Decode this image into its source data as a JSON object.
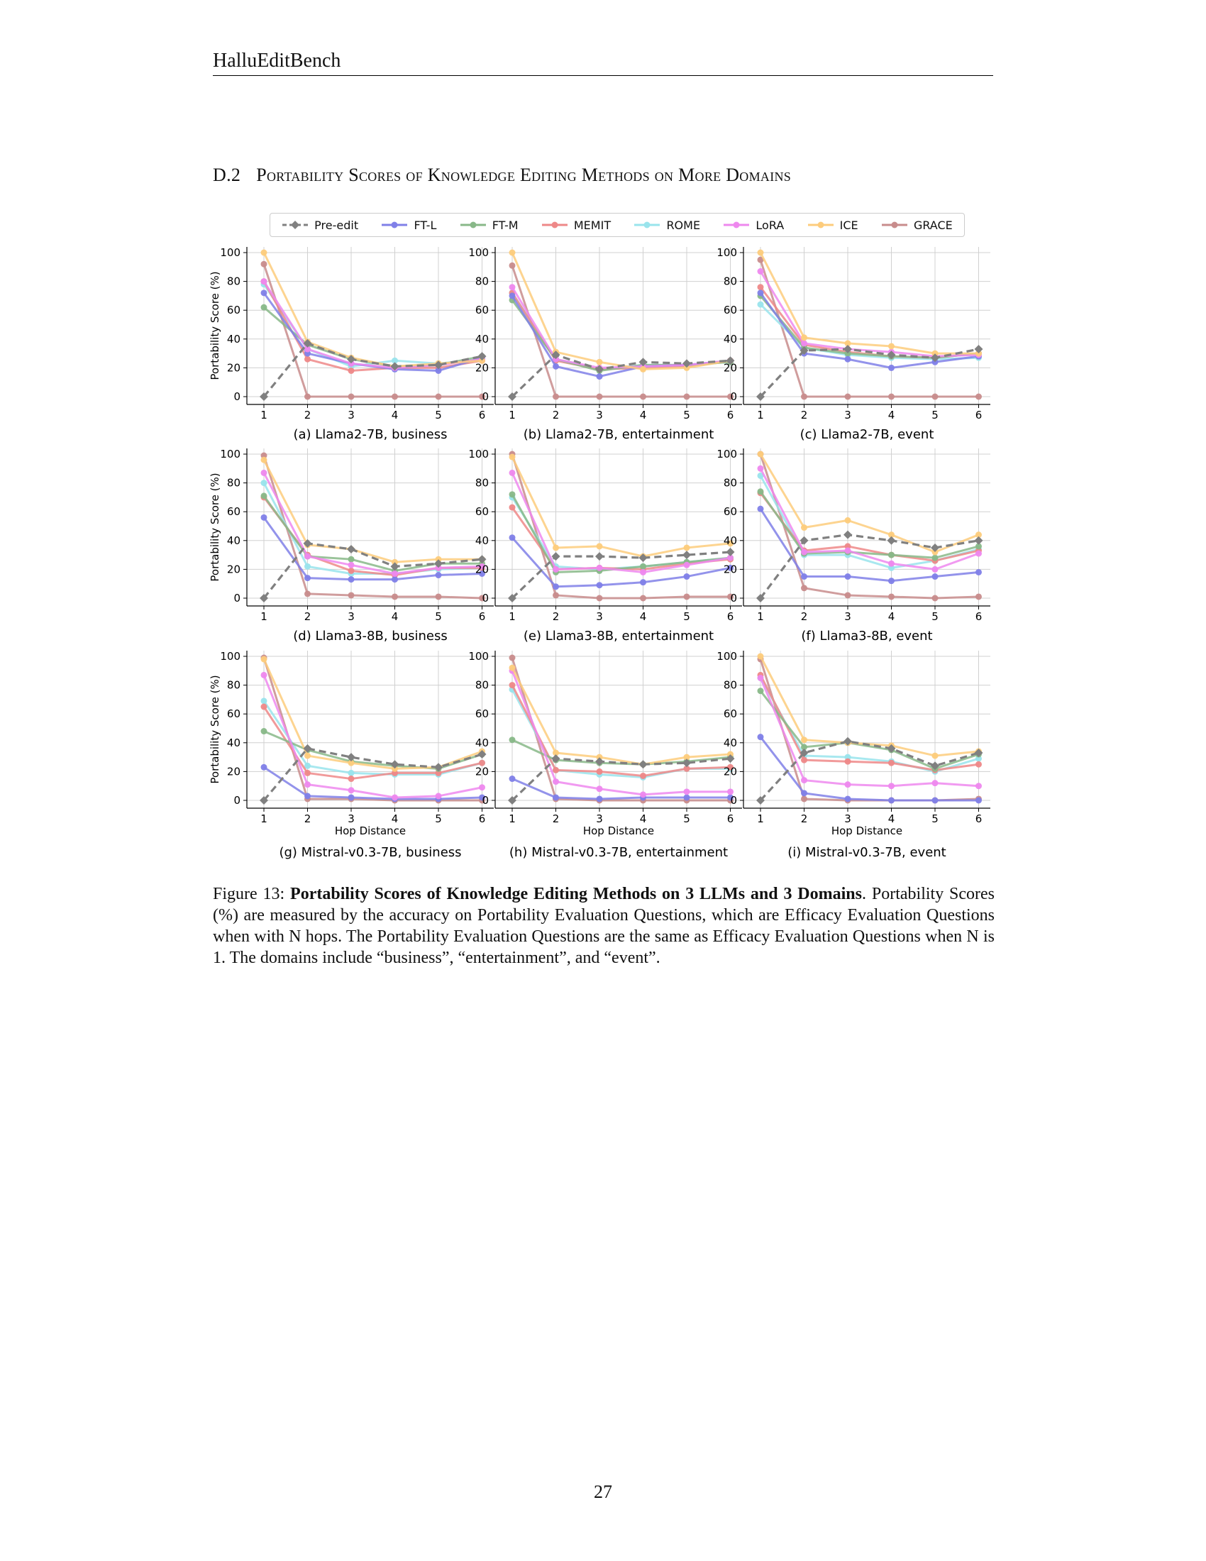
{
  "header": {
    "running_head": "HalluEditBench"
  },
  "section": {
    "number": "D.2",
    "title": "Portability Scores of Knowledge Editing Methods on More Domains"
  },
  "legend": [
    {
      "name": "Pre-edit",
      "color": "#808080",
      "marker": "diamond",
      "dashed": true
    },
    {
      "name": "FT-L",
      "color": "#8080e8",
      "marker": "circle",
      "dashed": false
    },
    {
      "name": "FT-M",
      "color": "#88b888",
      "marker": "circle",
      "dashed": false
    },
    {
      "name": "MEMIT",
      "color": "#ee8888",
      "marker": "circle",
      "dashed": false
    },
    {
      "name": "ROME",
      "color": "#99e4ec",
      "marker": "circle",
      "dashed": false
    },
    {
      "name": "LoRA",
      "color": "#ee88ee",
      "marker": "circle",
      "dashed": false
    },
    {
      "name": "ICE",
      "color": "#fdcc7c",
      "marker": "circle",
      "dashed": false
    },
    {
      "name": "GRACE",
      "color": "#c88c8c",
      "marker": "circle",
      "dashed": false
    }
  ],
  "chart_data": [
    {
      "type": "line",
      "subtitle": "(a) Llama2-7B, business",
      "ylabel": "Portability Score (%)",
      "xlabel": "",
      "x": [
        1,
        2,
        3,
        4,
        5,
        6
      ],
      "ylim": [
        0,
        100
      ],
      "grid": true,
      "series": [
        {
          "name": "Pre-edit",
          "values": [
            0,
            37,
            26,
            21,
            22,
            28
          ]
        },
        {
          "name": "FT-L",
          "values": [
            72,
            30,
            23,
            19,
            18,
            27
          ]
        },
        {
          "name": "FT-M",
          "values": [
            62,
            36,
            26,
            21,
            22,
            28
          ]
        },
        {
          "name": "MEMIT",
          "values": [
            80,
            26,
            18,
            20,
            20,
            25
          ]
        },
        {
          "name": "ROME",
          "values": [
            78,
            33,
            21,
            25,
            23,
            26
          ]
        },
        {
          "name": "LoRA",
          "values": [
            80,
            33,
            23,
            20,
            22,
            26
          ]
        },
        {
          "name": "ICE",
          "values": [
            100,
            38,
            27,
            21,
            23,
            25
          ]
        },
        {
          "name": "GRACE",
          "values": [
            92,
            0,
            0,
            0,
            0,
            0
          ]
        }
      ]
    },
    {
      "type": "line",
      "subtitle": "(b) Llama2-7B, entertainment",
      "ylabel": "",
      "xlabel": "",
      "x": [
        1,
        2,
        3,
        4,
        5,
        6
      ],
      "ylim": [
        0,
        100
      ],
      "grid": true,
      "series": [
        {
          "name": "Pre-edit",
          "values": [
            0,
            29,
            19,
            24,
            23,
            25
          ]
        },
        {
          "name": "FT-L",
          "values": [
            70,
            21,
            14,
            21,
            22,
            25
          ]
        },
        {
          "name": "FT-M",
          "values": [
            67,
            26,
            18,
            22,
            22,
            24
          ]
        },
        {
          "name": "MEMIT",
          "values": [
            72,
            25,
            19,
            20,
            21,
            25
          ]
        },
        {
          "name": "ROME",
          "values": [
            72,
            26,
            19,
            22,
            22,
            24
          ]
        },
        {
          "name": "LoRA",
          "values": [
            76,
            26,
            20,
            21,
            22,
            25
          ]
        },
        {
          "name": "ICE",
          "values": [
            100,
            31,
            24,
            19,
            20,
            25
          ]
        },
        {
          "name": "GRACE",
          "values": [
            91,
            0,
            0,
            0,
            0,
            0
          ]
        }
      ]
    },
    {
      "type": "line",
      "subtitle": "(c) Llama2-7B, event",
      "ylabel": "",
      "xlabel": "",
      "x": [
        1,
        2,
        3,
        4,
        5,
        6
      ],
      "ylim": [
        0,
        100
      ],
      "grid": true,
      "series": [
        {
          "name": "Pre-edit",
          "values": [
            0,
            32,
            33,
            29,
            27,
            33
          ]
        },
        {
          "name": "FT-L",
          "values": [
            72,
            30,
            26,
            20,
            24,
            28
          ]
        },
        {
          "name": "FT-M",
          "values": [
            70,
            34,
            30,
            28,
            27,
            30
          ]
        },
        {
          "name": "MEMIT",
          "values": [
            76,
            36,
            31,
            28,
            27,
            30
          ]
        },
        {
          "name": "ROME",
          "values": [
            64,
            34,
            29,
            27,
            26,
            27
          ]
        },
        {
          "name": "LoRA",
          "values": [
            87,
            37,
            33,
            31,
            28,
            29
          ]
        },
        {
          "name": "ICE",
          "values": [
            100,
            41,
            37,
            35,
            30,
            30
          ]
        },
        {
          "name": "GRACE",
          "values": [
            95,
            0,
            0,
            0,
            0,
            0
          ]
        }
      ]
    },
    {
      "type": "line",
      "subtitle": "(d) Llama3-8B, business",
      "ylabel": "Portability Score (%)",
      "xlabel": "",
      "x": [
        1,
        2,
        3,
        4,
        5,
        6
      ],
      "ylim": [
        0,
        100
      ],
      "grid": true,
      "series": [
        {
          "name": "Pre-edit",
          "values": [
            0,
            38,
            34,
            22,
            24,
            27
          ]
        },
        {
          "name": "FT-L",
          "values": [
            56,
            14,
            13,
            13,
            16,
            17
          ]
        },
        {
          "name": "FT-M",
          "values": [
            71,
            29,
            27,
            19,
            24,
            24
          ]
        },
        {
          "name": "MEMIT",
          "values": [
            70,
            30,
            19,
            16,
            21,
            21
          ]
        },
        {
          "name": "ROME",
          "values": [
            80,
            22,
            17,
            17,
            20,
            21
          ]
        },
        {
          "name": "LoRA",
          "values": [
            87,
            29,
            23,
            17,
            21,
            22
          ]
        },
        {
          "name": "ICE",
          "values": [
            96,
            37,
            34,
            25,
            27,
            27
          ]
        },
        {
          "name": "GRACE",
          "values": [
            99,
            3,
            2,
            1,
            1,
            0
          ]
        }
      ]
    },
    {
      "type": "line",
      "subtitle": "(e) Llama3-8B, entertainment",
      "ylabel": "",
      "xlabel": "",
      "x": [
        1,
        2,
        3,
        4,
        5,
        6
      ],
      "ylim": [
        0,
        100
      ],
      "grid": true,
      "series": [
        {
          "name": "Pre-edit",
          "values": [
            0,
            29,
            29,
            28,
            30,
            32
          ]
        },
        {
          "name": "FT-L",
          "values": [
            42,
            8,
            9,
            11,
            15,
            21
          ]
        },
        {
          "name": "FT-M",
          "values": [
            72,
            18,
            19,
            22,
            25,
            28
          ]
        },
        {
          "name": "MEMIT",
          "values": [
            63,
            20,
            21,
            20,
            24,
            27
          ]
        },
        {
          "name": "ROME",
          "values": [
            70,
            22,
            20,
            22,
            25,
            28
          ]
        },
        {
          "name": "LoRA",
          "values": [
            87,
            20,
            21,
            18,
            23,
            28
          ]
        },
        {
          "name": "ICE",
          "values": [
            98,
            35,
            36,
            29,
            35,
            38
          ]
        },
        {
          "name": "GRACE",
          "values": [
            100,
            2,
            0,
            0,
            1,
            1
          ]
        }
      ]
    },
    {
      "type": "line",
      "subtitle": "(f) Llama3-8B, event",
      "ylabel": "",
      "xlabel": "",
      "x": [
        1,
        2,
        3,
        4,
        5,
        6
      ],
      "ylim": [
        0,
        100
      ],
      "grid": true,
      "series": [
        {
          "name": "Pre-edit",
          "values": [
            0,
            40,
            44,
            40,
            35,
            40
          ]
        },
        {
          "name": "FT-L",
          "values": [
            62,
            15,
            15,
            12,
            15,
            18
          ]
        },
        {
          "name": "FT-M",
          "values": [
            74,
            31,
            32,
            30,
            28,
            36
          ]
        },
        {
          "name": "MEMIT",
          "values": [
            73,
            33,
            36,
            30,
            26,
            33
          ]
        },
        {
          "name": "ROME",
          "values": [
            85,
            30,
            30,
            21,
            26,
            34
          ]
        },
        {
          "name": "LoRA",
          "values": [
            90,
            32,
            33,
            24,
            20,
            31
          ]
        },
        {
          "name": "ICE",
          "values": [
            100,
            49,
            54,
            44,
            32,
            44
          ]
        },
        {
          "name": "GRACE",
          "values": [
            100,
            7,
            2,
            1,
            0,
            1
          ]
        }
      ]
    },
    {
      "type": "line",
      "subtitle": "(g) Mistral-v0.3-7B, business",
      "ylabel": "Portability Score (%)",
      "xlabel": "Hop Distance",
      "x": [
        1,
        2,
        3,
        4,
        5,
        6
      ],
      "ylim": [
        0,
        100
      ],
      "grid": true,
      "series": [
        {
          "name": "Pre-edit",
          "values": [
            0,
            36,
            30,
            25,
            23,
            32
          ]
        },
        {
          "name": "FT-L",
          "values": [
            23,
            3,
            2,
            1,
            1,
            2
          ]
        },
        {
          "name": "FT-M",
          "values": [
            48,
            35,
            27,
            24,
            22,
            32
          ]
        },
        {
          "name": "MEMIT",
          "values": [
            65,
            19,
            15,
            19,
            19,
            26
          ]
        },
        {
          "name": "ROME",
          "values": [
            69,
            24,
            19,
            18,
            18,
            26
          ]
        },
        {
          "name": "LoRA",
          "values": [
            87,
            11,
            7,
            2,
            3,
            9
          ]
        },
        {
          "name": "ICE",
          "values": [
            98,
            31,
            26,
            22,
            23,
            34
          ]
        },
        {
          "name": "GRACE",
          "values": [
            99,
            1,
            1,
            0,
            0,
            0
          ]
        }
      ]
    },
    {
      "type": "line",
      "subtitle": "(h) Mistral-v0.3-7B, entertainment",
      "ylabel": "",
      "xlabel": "Hop Distance",
      "x": [
        1,
        2,
        3,
        4,
        5,
        6
      ],
      "ylim": [
        0,
        100
      ],
      "grid": true,
      "series": [
        {
          "name": "Pre-edit",
          "values": [
            0,
            29,
            27,
            25,
            26,
            29
          ]
        },
        {
          "name": "FT-L",
          "values": [
            15,
            2,
            1,
            2,
            2,
            2
          ]
        },
        {
          "name": "FT-M",
          "values": [
            42,
            28,
            26,
            25,
            27,
            30
          ]
        },
        {
          "name": "MEMIT",
          "values": [
            80,
            21,
            20,
            17,
            22,
            23
          ]
        },
        {
          "name": "ROME",
          "values": [
            77,
            21,
            18,
            16,
            22,
            22
          ]
        },
        {
          "name": "LoRA",
          "values": [
            90,
            13,
            8,
            4,
            6,
            6
          ]
        },
        {
          "name": "ICE",
          "values": [
            92,
            33,
            30,
            25,
            30,
            32
          ]
        },
        {
          "name": "GRACE",
          "values": [
            99,
            1,
            0,
            0,
            0,
            0
          ]
        }
      ]
    },
    {
      "type": "line",
      "subtitle": "(i) Mistral-v0.3-7B, event",
      "ylabel": "",
      "xlabel": "Hop Distance",
      "x": [
        1,
        2,
        3,
        4,
        5,
        6
      ],
      "ylim": [
        0,
        100
      ],
      "grid": true,
      "series": [
        {
          "name": "Pre-edit",
          "values": [
            0,
            33,
            41,
            36,
            24,
            33
          ]
        },
        {
          "name": "FT-L",
          "values": [
            44,
            5,
            1,
            0,
            0,
            0
          ]
        },
        {
          "name": "FT-M",
          "values": [
            76,
            37,
            40,
            35,
            22,
            32
          ]
        },
        {
          "name": "MEMIT",
          "values": [
            87,
            28,
            27,
            26,
            21,
            25
          ]
        },
        {
          "name": "ROME",
          "values": [
            85,
            31,
            30,
            27,
            20,
            29
          ]
        },
        {
          "name": "LoRA",
          "values": [
            85,
            14,
            11,
            10,
            12,
            10
          ]
        },
        {
          "name": "ICE",
          "values": [
            100,
            42,
            40,
            38,
            31,
            34
          ]
        },
        {
          "name": "GRACE",
          "values": [
            98,
            1,
            0,
            0,
            0,
            1
          ]
        }
      ]
    }
  ],
  "caption": {
    "label": "Figure 13:",
    "bold": "Portability Scores of Knowledge Editing Methods on 3 LLMs and 3 Domains",
    "text": "Portability Scores (%) are measured by the accuracy on Portability Evaluation Questions, which are Efficacy Evaluation Questions when with N hops. The Portability Evaluation Questions are the same as Efficacy Evaluation Questions when N is 1. The domains include “business”, “entertainment”, and “event”."
  },
  "page_number": "27"
}
